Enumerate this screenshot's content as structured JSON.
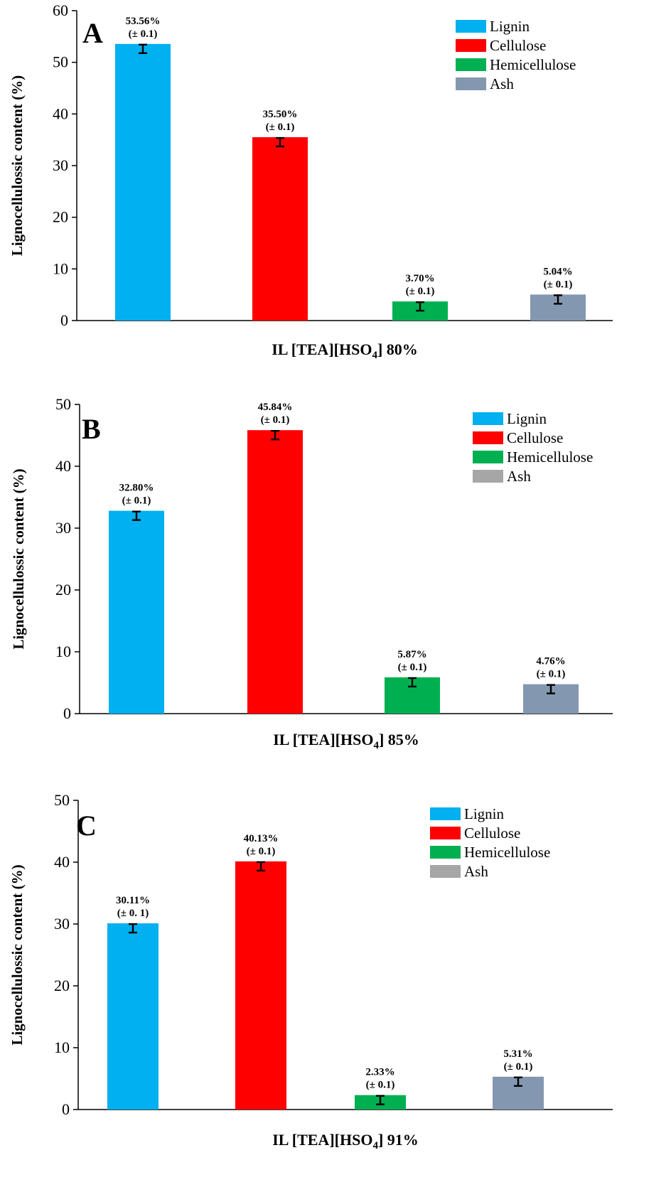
{
  "chart_data": [
    {
      "type": "bar",
      "panel_letter": "A",
      "xlabel": "IL [TEA][HSO4] 80%",
      "xlabel_parts": {
        "prefix": "IL [TEA][HSO",
        "subscript": "4",
        "suffix": "] 80%"
      },
      "ylabel": "Lignocellulossic content (%)",
      "ylim": [
        0,
        60
      ],
      "yticks": [
        "0",
        "10",
        "20",
        "30",
        "40",
        "50",
        "60"
      ],
      "categories": [
        "Lignin",
        "Cellulose",
        "Hemicellulose",
        "Ash"
      ],
      "values": [
        53.56,
        35.5,
        3.7,
        5.04
      ],
      "errors": [
        0.1,
        0.1,
        0.1,
        0.1
      ],
      "labels": [
        "53.56%",
        "35.50%",
        "3.70%",
        "5.04%"
      ],
      "sublabels": [
        "(± 0.1)",
        "(± 0.1)",
        "(± 0.1)",
        "(± 0.1)"
      ],
      "colors": [
        "#00b0f0",
        "#ff0000",
        "#00b050",
        "#8497b0"
      ],
      "legend_colors": [
        "#00b0f0",
        "#ff0000",
        "#00b050",
        "#8497b0"
      ],
      "legend_position": "top-right"
    },
    {
      "type": "bar",
      "panel_letter": "B",
      "xlabel": "IL [TEA][HSO4] 85%",
      "xlabel_parts": {
        "prefix": "IL [TEA][HSO",
        "subscript": "4",
        "suffix": "] 85%"
      },
      "ylabel": "Lignocellulossic content (%)",
      "ylim": [
        0,
        50
      ],
      "yticks": [
        "0",
        "10",
        "20",
        "30",
        "40",
        "50"
      ],
      "categories": [
        "Lignin",
        "Cellulose",
        "Hemicellulose",
        "Ash"
      ],
      "values": [
        32.8,
        45.84,
        5.87,
        4.76
      ],
      "errors": [
        0.1,
        0.1,
        0.1,
        0.1
      ],
      "labels": [
        "32.80%",
        "45.84%",
        "5.87%",
        "4.76%"
      ],
      "sublabels": [
        "(± 0.1)",
        "(± 0.1)",
        "(± 0.1)",
        "(± 0.1)"
      ],
      "colors": [
        "#00b0f0",
        "#ff0000",
        "#00b050",
        "#8497b0"
      ],
      "legend_colors": [
        "#00b0f0",
        "#ff0000",
        "#00b050",
        "#a6a6a6"
      ],
      "legend_position": "top-right"
    },
    {
      "type": "bar",
      "panel_letter": "C",
      "xlabel": "IL [TEA][HSO4] 91%",
      "xlabel_parts": {
        "prefix": "IL [TEA][HSO",
        "subscript": "4",
        "suffix": "] 91%"
      },
      "ylabel": "Lignocellulossic content (%)",
      "ylim": [
        0,
        50
      ],
      "yticks": [
        "0",
        "10",
        "20",
        "30",
        "40",
        "50"
      ],
      "categories": [
        "Lignin",
        "Cellulose",
        "Hemicellulose",
        "Ash"
      ],
      "values": [
        30.11,
        40.13,
        2.33,
        5.31
      ],
      "errors": [
        0.1,
        0.1,
        0.1,
        0.1
      ],
      "labels": [
        "30.11%",
        "40.13%",
        "2.33%",
        "5.31%"
      ],
      "sublabels": [
        "(± 0. 1)",
        "(± 0.1)",
        "(± 0.1)",
        "(± 0.1)"
      ],
      "colors": [
        "#00b0f0",
        "#ff0000",
        "#00b050",
        "#8497b0"
      ],
      "legend_colors": [
        "#00b0f0",
        "#ff0000",
        "#00b050",
        "#a6a6a6"
      ],
      "legend_position": "top-right"
    }
  ]
}
